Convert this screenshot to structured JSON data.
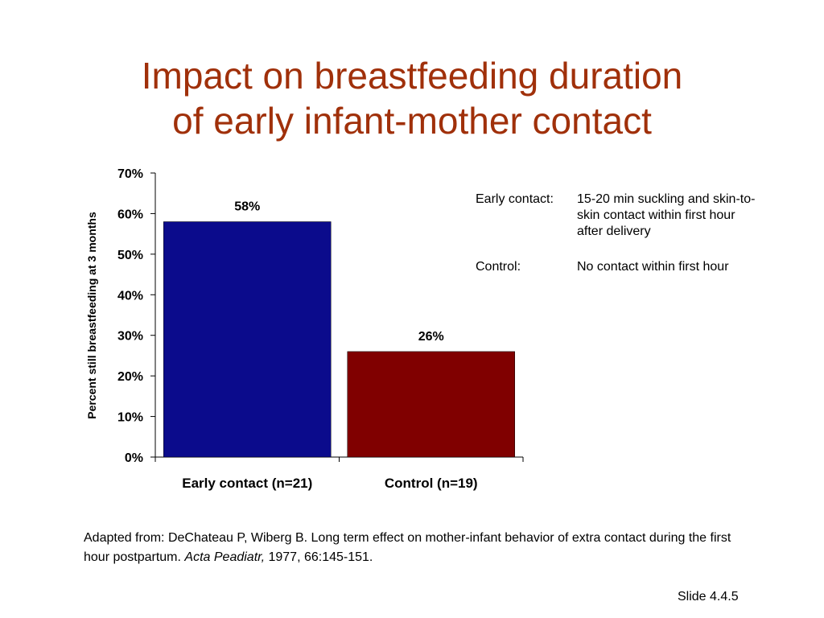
{
  "title": {
    "line1": "Impact on breastfeeding duration",
    "line2": "of early infant-mother contact"
  },
  "chart_data": {
    "type": "bar",
    "categories": [
      "Early contact (n=21)",
      "Control (n=19)"
    ],
    "values": [
      58,
      26
    ],
    "data_labels": [
      "58%",
      "26%"
    ],
    "colors": [
      "#0b0b8c",
      "#800000"
    ],
    "ylabel": "Percent still breastfeeding at 3 months",
    "xlabel": "",
    "ylim": [
      0,
      70
    ],
    "yticks": [
      "0%",
      "10%",
      "20%",
      "30%",
      "40%",
      "50%",
      "60%",
      "70%"
    ],
    "grid": false,
    "legend": "none"
  },
  "notes": {
    "early": {
      "label": "Early contact:",
      "text": "15-20 min suckling and skin-to-skin contact within first hour after delivery"
    },
    "control": {
      "label": "Control:",
      "text": "No contact within first hour"
    }
  },
  "citation": {
    "main": "Adapted from: DeChateau P, Wiberg B. Long term effect on mother-infant behavior of extra contact during the first hour postpartum. ",
    "journal": "Acta Peadiatr,",
    "tail": " 1977, 66:145-151."
  },
  "slide_number": "Slide 4.4.5",
  "accent_color": "#a0300a"
}
